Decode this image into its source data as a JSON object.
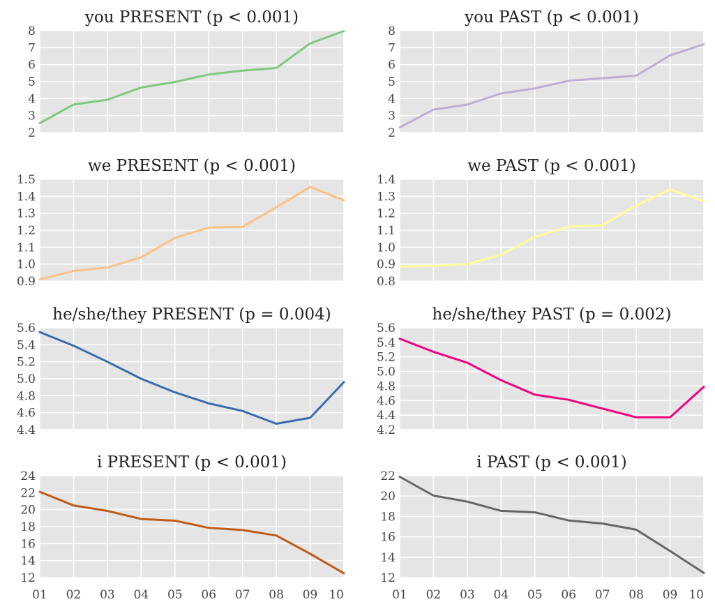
{
  "chart_data": [
    {
      "type": "line",
      "title": "you PRESENT (p < 0.001)",
      "color": "#7fc97f",
      "x": [
        "01",
        "02",
        "03",
        "04",
        "05",
        "06",
        "07",
        "08",
        "09",
        "10"
      ],
      "values": [
        2.55,
        3.65,
        3.93,
        4.65,
        4.98,
        5.42,
        5.65,
        5.8,
        7.25,
        7.98
      ],
      "ylim": [
        2,
        8
      ],
      "yticks": [
        "2",
        "3",
        "4",
        "5",
        "6",
        "7",
        "8"
      ],
      "grid": true,
      "show_xticks": false
    },
    {
      "type": "line",
      "title": "you PAST (p < 0.001)",
      "color": "#beaed4",
      "x": [
        "01",
        "02",
        "03",
        "04",
        "05",
        "06",
        "07",
        "08",
        "09",
        "10"
      ],
      "values": [
        2.3,
        3.35,
        3.65,
        4.3,
        4.6,
        5.05,
        5.2,
        5.35,
        6.55,
        7.2
      ],
      "ylim": [
        2,
        8
      ],
      "yticks": [
        "2",
        "3",
        "4",
        "5",
        "6",
        "7",
        "8"
      ],
      "grid": true,
      "show_xticks": false
    },
    {
      "type": "line",
      "title": "we PRESENT (p < 0.001)",
      "color": "#fdc086",
      "x": [
        "01",
        "02",
        "03",
        "04",
        "05",
        "06",
        "07",
        "08",
        "09",
        "10"
      ],
      "values": [
        0.91,
        0.96,
        0.98,
        1.04,
        1.155,
        1.215,
        1.22,
        1.335,
        1.455,
        1.375
      ],
      "ylim": [
        0.9,
        1.5
      ],
      "yticks": [
        "0.9",
        "1.0",
        "1.1",
        "1.2",
        "1.3",
        "1.4",
        "1.5"
      ],
      "grid": true,
      "show_xticks": false
    },
    {
      "type": "line",
      "title": "we PAST (p < 0.001)",
      "color": "#ffff99",
      "x": [
        "01",
        "02",
        "03",
        "04",
        "05",
        "06",
        "07",
        "08",
        "09",
        "10"
      ],
      "values": [
        0.885,
        0.89,
        0.9,
        0.955,
        1.06,
        1.12,
        1.13,
        1.245,
        1.34,
        1.27
      ],
      "ylim": [
        0.8,
        1.4
      ],
      "yticks": [
        "0.8",
        "0.9",
        "1.0",
        "1.1",
        "1.2",
        "1.3",
        "1.4"
      ],
      "grid": true,
      "show_xticks": false
    },
    {
      "type": "line",
      "title": "he/she/they PRESENT (p = 0.004)",
      "color": "#386cb0",
      "x": [
        "01",
        "02",
        "03",
        "04",
        "05",
        "06",
        "07",
        "08",
        "09",
        "10"
      ],
      "values": [
        5.55,
        5.39,
        5.2,
        5.0,
        4.84,
        4.71,
        4.62,
        4.47,
        4.54,
        4.96
      ],
      "ylim": [
        4.4,
        5.6
      ],
      "yticks": [
        "4.4",
        "4.6",
        "4.8",
        "5.0",
        "5.2",
        "5.4",
        "5.6"
      ],
      "grid": true,
      "show_xticks": false
    },
    {
      "type": "line",
      "title": "he/she/they PAST (p = 0.002)",
      "color": "#f0027f",
      "x": [
        "01",
        "02",
        "03",
        "04",
        "05",
        "06",
        "07",
        "08",
        "09",
        "10"
      ],
      "values": [
        5.45,
        5.27,
        5.12,
        4.88,
        4.68,
        4.61,
        4.49,
        4.37,
        4.37,
        4.79
      ],
      "ylim": [
        4.2,
        5.6
      ],
      "yticks": [
        "4.2",
        "4.4",
        "4.6",
        "4.8",
        "5.0",
        "5.2",
        "5.4",
        "5.6"
      ],
      "grid": true,
      "show_xticks": false
    },
    {
      "type": "line",
      "title": "i PRESENT (p < 0.001)",
      "color": "#bf5b17",
      "x": [
        "01",
        "02",
        "03",
        "04",
        "05",
        "06",
        "07",
        "08",
        "09",
        "10"
      ],
      "values": [
        22.1,
        20.5,
        19.85,
        18.9,
        18.7,
        17.85,
        17.6,
        16.95,
        14.8,
        12.5
      ],
      "ylim": [
        12,
        24
      ],
      "yticks": [
        "12",
        "14",
        "16",
        "18",
        "20",
        "22",
        "24"
      ],
      "grid": true,
      "show_xticks": true
    },
    {
      "type": "line",
      "title": "i PAST (p < 0.001)",
      "color": "#666666",
      "x": [
        "01",
        "02",
        "03",
        "04",
        "05",
        "06",
        "07",
        "08",
        "09",
        "10"
      ],
      "values": [
        21.9,
        20.05,
        19.45,
        18.55,
        18.4,
        17.6,
        17.3,
        16.7,
        14.6,
        12.45
      ],
      "ylim": [
        12,
        22
      ],
      "yticks": [
        "12",
        "14",
        "16",
        "18",
        "20",
        "22"
      ],
      "grid": true,
      "show_xticks": true
    }
  ]
}
